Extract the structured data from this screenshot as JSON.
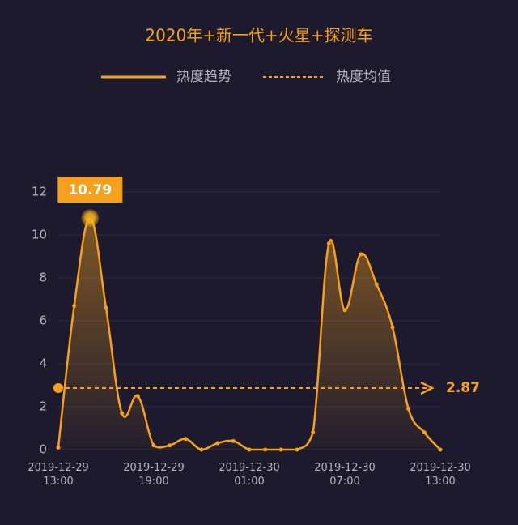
{
  "chart_data": {
    "type": "line",
    "title": "2020年+新一代+火星+探测车",
    "categories": [
      "2019-12-29 13:00",
      null,
      null,
      null,
      null,
      null,
      "2019-12-29 19:00",
      null,
      null,
      null,
      null,
      null,
      "2019-12-30 01:00",
      null,
      null,
      null,
      null,
      null,
      "2019-12-30 07:00",
      null,
      null,
      null,
      null,
      null,
      "2019-12-30 13:00"
    ],
    "series": [
      {
        "name": "热度趋势",
        "color": "#f5a11c",
        "values": [
          0.1,
          6.7,
          10.79,
          6.6,
          1.7,
          2.5,
          0.2,
          0.2,
          0.5,
          0,
          0.3,
          0.4,
          0,
          0,
          0,
          0,
          0.8,
          9.6,
          6.5,
          9.1,
          7.7,
          5.7,
          1.9,
          0.8,
          0
        ]
      }
    ],
    "mean": {
      "name": "热度均值",
      "value": 2.87
    },
    "ylim": [
      0,
      12
    ],
    "yticks": [
      0,
      2,
      4,
      6,
      8,
      10,
      12
    ],
    "grid": true
  }
}
